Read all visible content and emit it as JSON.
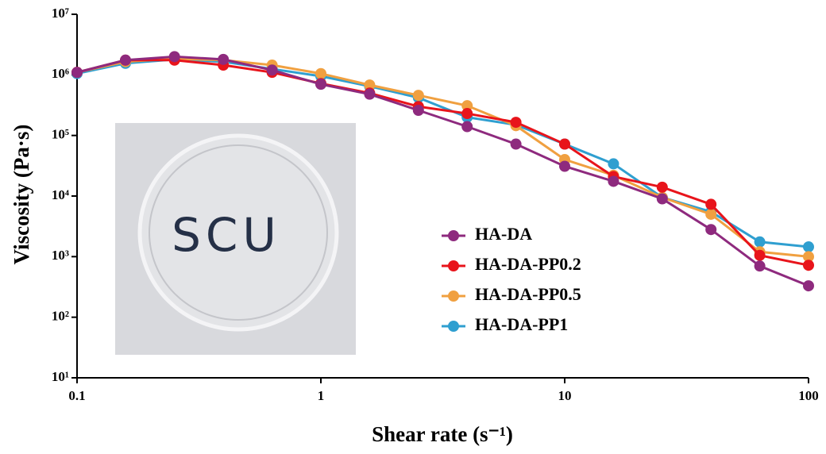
{
  "chart_data": {
    "type": "line",
    "x_label": "Shear rate (s⁻¹)",
    "y_label": "Viscosity (Pa·s)",
    "x_scale": "log",
    "y_scale": "log",
    "x": [
      0.1,
      0.158,
      0.251,
      0.398,
      0.631,
      1,
      1.585,
      2.512,
      3.981,
      6.31,
      10,
      15.85,
      25.12,
      39.81,
      63.1,
      100
    ],
    "series": [
      {
        "name": "HA-DA",
        "color": "#8e2a7e",
        "values": [
          1100000,
          1750000,
          2000000,
          1800000,
          1200000,
          700000,
          480000,
          260000,
          140000,
          72000,
          31000,
          17500,
          9000,
          2800,
          700,
          330
        ]
      },
      {
        "name": "HA-DA-PP0.2",
        "color": "#e8141b",
        "values": [
          1100000,
          1750000,
          1750000,
          1450000,
          1100000,
          720000,
          500000,
          300000,
          230000,
          165000,
          72000,
          21000,
          14000,
          7300,
          1050,
          720
        ]
      },
      {
        "name": "HA-DA-PP0.5",
        "color": "#f0a040",
        "values": [
          1100000,
          1650000,
          1850000,
          1750000,
          1450000,
          1050000,
          680000,
          460000,
          310000,
          145000,
          40000,
          22000,
          9500,
          5000,
          1200,
          1000
        ]
      },
      {
        "name": "HA-DA-PP1",
        "color": "#2f9fd0",
        "values": [
          1050000,
          1550000,
          1800000,
          1650000,
          1250000,
          950000,
          650000,
          420000,
          200000,
          150000,
          72000,
          34000,
          9500,
          5500,
          1750,
          1450
        ]
      }
    ],
    "xlim": [
      0.1,
      100
    ],
    "xticks": [
      0.1,
      1,
      10,
      100
    ],
    "ylim": [
      10,
      10000000
    ],
    "yticks": [
      {
        "value": 10,
        "label": "10¹"
      },
      {
        "value": 100,
        "label": "10²"
      },
      {
        "value": 1000,
        "label": "10³"
      },
      {
        "value": 10000,
        "label": "10⁴"
      },
      {
        "value": 100000,
        "label": "10⁵"
      },
      {
        "value": 1000000,
        "label": "10⁶"
      },
      {
        "value": 10000000,
        "label": "10⁷"
      }
    ],
    "legend": "lower-right",
    "inset_label": "SCU"
  }
}
